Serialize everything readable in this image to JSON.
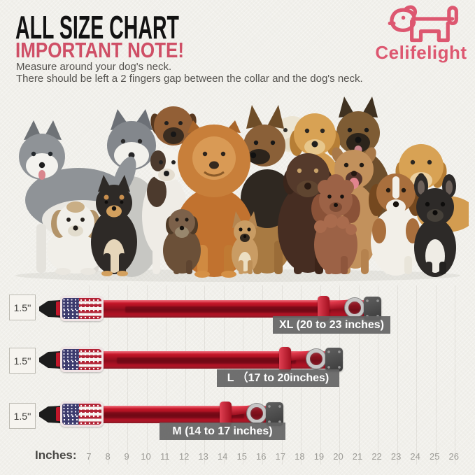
{
  "header": {
    "title": "ALL SIZE CHART",
    "note_title": "IMPORTANT NOTE!",
    "note_line1": "Measure around your dog's neck.",
    "note_line2": "There should be left a 2 fingers gap between the collar and the dog's neck."
  },
  "brand": {
    "name": "Celifelight",
    "logo_icon": "dog-outline-icon",
    "color": "#dd5770"
  },
  "dogs_photo": {
    "description": "group photo of assorted dog breeds sitting together",
    "breeds": [
      "siberian-husky",
      "shih-tzu",
      "shiba-inu",
      "alaskan-malamute",
      "boxer-fawn",
      "boxer-white",
      "chow-chow",
      "dachshund",
      "chihuahua",
      "german-shepherd",
      "white-labrador",
      "golden-retriever",
      "chocolate-labrador",
      "german-shepherd-2",
      "pit-bull-puppy",
      "toy-poodle",
      "beagle",
      "golden-retriever-2",
      "french-bulldog"
    ]
  },
  "size_chart": {
    "width_label": "1.5''",
    "rows": [
      {
        "size": "XL",
        "label": "XL (20 to 23 inches)",
        "range_inches": [
          20,
          23
        ]
      },
      {
        "size": "L",
        "label": "L （17 to 20inches)",
        "range_inches": [
          17,
          20
        ]
      },
      {
        "size": "M",
        "label": "M (14 to 17 inches)",
        "range_inches": [
          14,
          17
        ]
      }
    ],
    "flag_icon": "usa-flag-patch",
    "collar_color": "#c41527"
  },
  "ruler": {
    "label": "Inches:",
    "numbers": [
      "7",
      "8",
      "9",
      "10",
      "11",
      "12",
      "13",
      "14",
      "15",
      "16",
      "17",
      "18",
      "19",
      "20",
      "21",
      "22",
      "23",
      "24",
      "25",
      "26"
    ]
  },
  "colors": {
    "background": "#f1f0eb",
    "accent_pink": "#cf4f66",
    "label_bar_gray": "#646464",
    "collar_red": "#c41527"
  }
}
